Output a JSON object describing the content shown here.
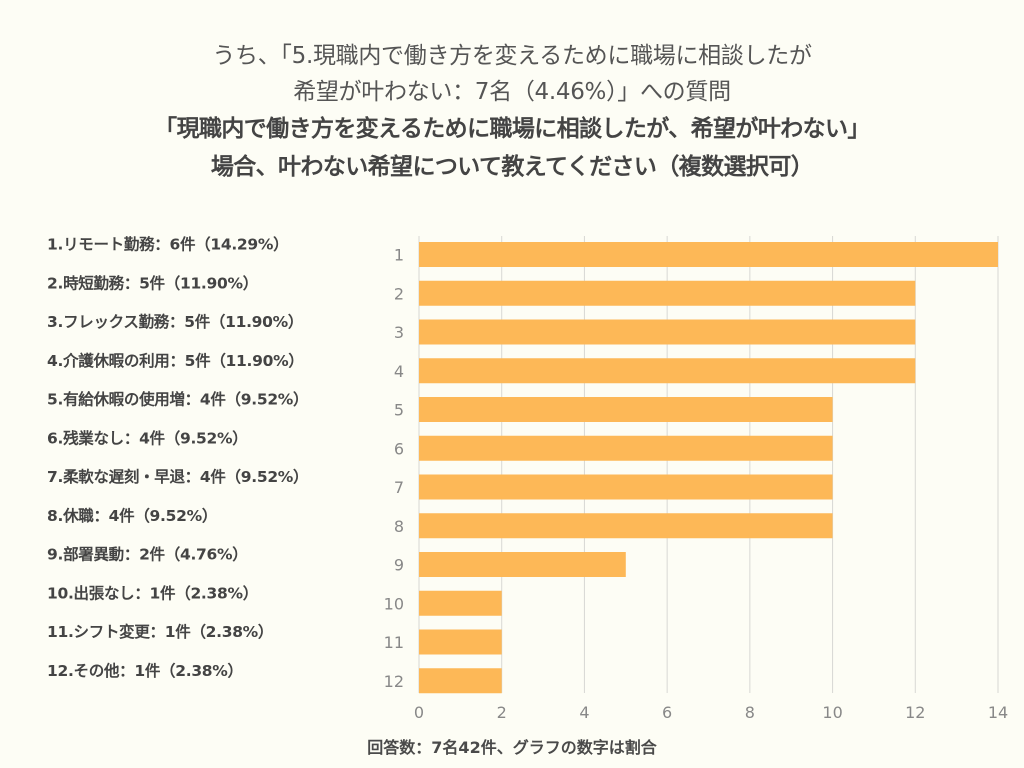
{
  "header": {
    "subtitle_lines": [
      "うち、「5.現職内で働き方を変えるために職場に相談したが",
      "希望が叶わない：7名（4.46%）」への質問"
    ],
    "question_lines": [
      "「現職内で働き方を変えるために職場に相談したが、希望が叶わない」",
      "場合、叶わない希望について教えてください（複数選択可）"
    ]
  },
  "chart_data": {
    "type": "bar",
    "orientation": "horizontal",
    "title": "「現職内で働き方を変えるために職場に相談したが、希望が叶わない」場合、叶わない希望について教えてください（複数選択可）",
    "categories": [
      "1",
      "2",
      "3",
      "4",
      "5",
      "6",
      "7",
      "8",
      "9",
      "10",
      "11",
      "12"
    ],
    "category_labels": [
      "1.リモート勤務：6件（14.29%）",
      "2.時短勤務：5件（11.90%）",
      "3.フレックス勤務：5件（11.90%）",
      "4.介護休暇の利用：5件（11.90%）",
      "5.有給休暇の使用増：4件（9.52%）",
      "6.残業なし：4件（9.52%）",
      "7.柔軟な遅刻・早退：4件（9.52%）",
      "8.休職：4件（9.52%）",
      "9.部署異動：2件（4.76%）",
      "10.出張なし：1件（2.38%）",
      "11.シフト変更：1件（2.38%）",
      "12.その他：1件（2.38%）"
    ],
    "values": [
      14,
      12,
      12,
      12,
      10,
      10,
      10,
      10,
      5,
      2,
      2,
      2
    ],
    "xlim": [
      0,
      14
    ],
    "xticks": [
      "0",
      "2",
      "4",
      "6",
      "8",
      "10",
      "12",
      "14"
    ],
    "xlabel": "",
    "ylabel": "",
    "grid": true,
    "bar_color": "#fdb857",
    "grid_color": "#d8d8d4"
  },
  "footer": {
    "note": "回答数：7名42件、グラフの数字は割合"
  }
}
